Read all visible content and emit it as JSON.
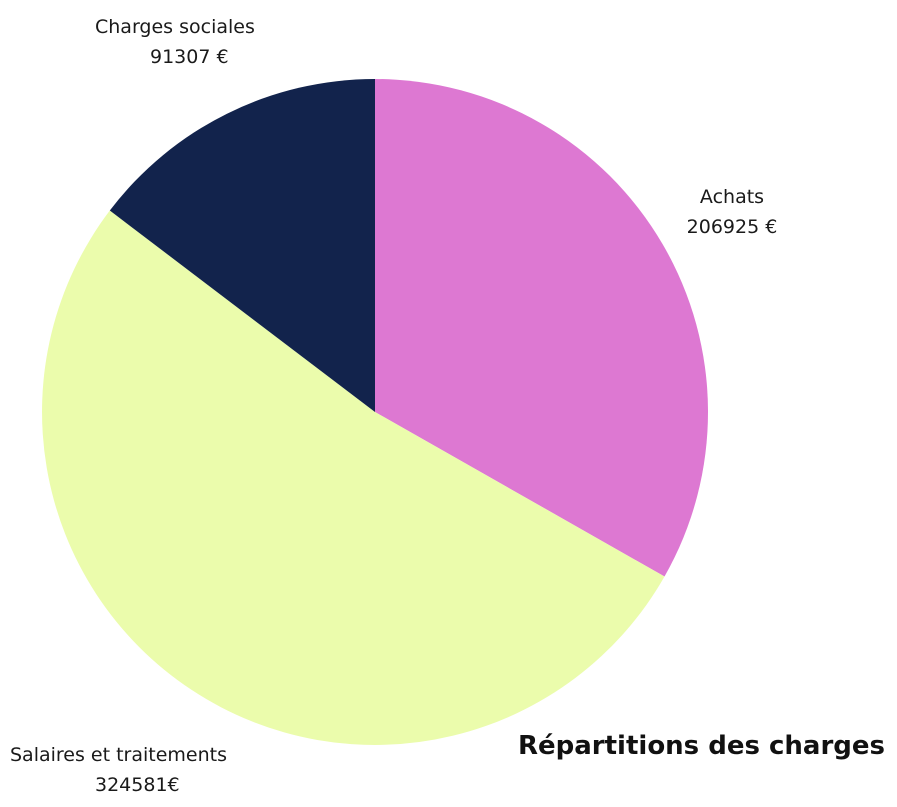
{
  "chart_data": {
    "type": "pie",
    "title": "Répartitions des charges",
    "categories": [
      "Achats",
      "Salaires et traitements",
      "Charges sociales"
    ],
    "values": [
      206925,
      324581,
      91307
    ],
    "value_labels": [
      "206925 €",
      "324581€",
      "91307 €"
    ],
    "colors": [
      "#dd78d2",
      "#ebfcac",
      "#12234c"
    ],
    "start_angle_deg": 0,
    "direction": "clockwise",
    "legend": "none",
    "labels_position": "outside"
  }
}
